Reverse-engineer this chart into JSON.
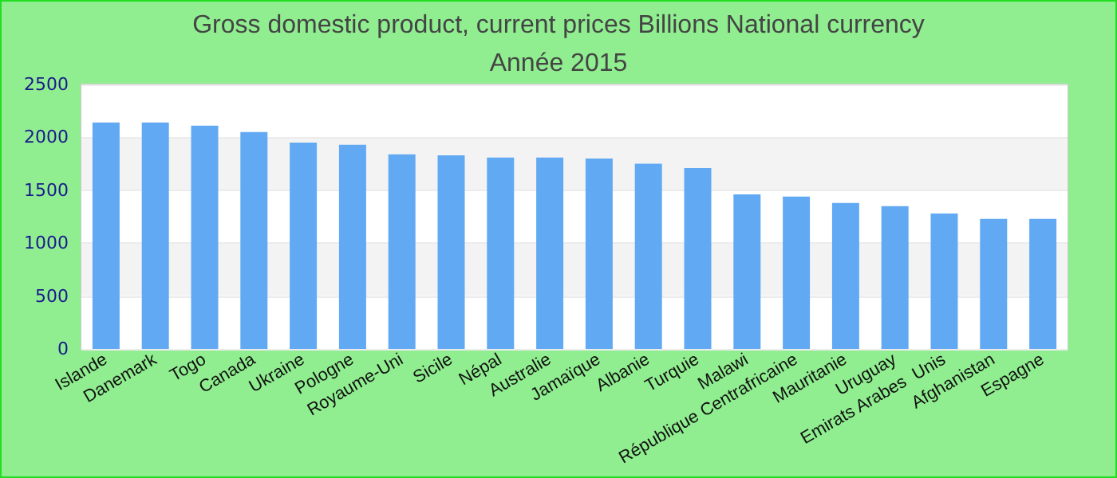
{
  "chart_data": {
    "type": "bar",
    "title": "Gross domestic product, current prices Billions National currency",
    "subtitle": "Année 2015",
    "categories": [
      "Islande",
      "Danemark",
      "Togo",
      "Canada",
      "Ukraine",
      "Pologne",
      "Royaume-Uni",
      "Sicile",
      "Népal",
      "Australie",
      "Jamaïque",
      "Albanie",
      "Turquie",
      "Malawi",
      "République Centrafricaine",
      "Mauritanie",
      "Uruguay",
      "Emirats Arabes  Unis",
      "Afghanistan",
      "Espagne"
    ],
    "values": [
      2140,
      2140,
      2110,
      2050,
      1950,
      1930,
      1840,
      1830,
      1810,
      1810,
      1800,
      1750,
      1710,
      1460,
      1440,
      1380,
      1350,
      1280,
      1230,
      1230
    ],
    "color": "#62a9f4",
    "ylim": [
      0,
      2500
    ],
    "yticks": [
      0,
      500,
      1000,
      1500,
      2000,
      2500
    ],
    "grid": "y"
  }
}
